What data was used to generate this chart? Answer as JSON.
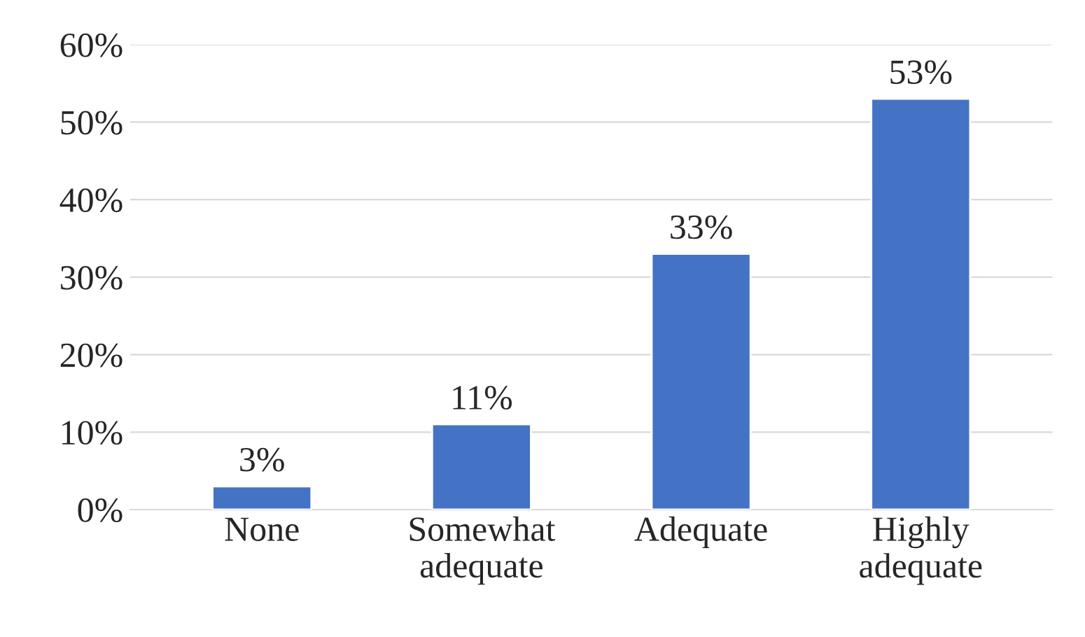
{
  "chart_data": {
    "type": "bar",
    "categories": [
      "None",
      "Somewhat\nadequate",
      "Adequate",
      "Highly\nadequate"
    ],
    "values": [
      3,
      11,
      33,
      53
    ],
    "color": "#4472c4",
    "value_labels": [
      "3%",
      "11%",
      "33%",
      "53%"
    ],
    "ylim": [
      0,
      60
    ],
    "yticks": [
      {
        "value": 0,
        "label": "0%"
      },
      {
        "value": 10,
        "label": "10%"
      },
      {
        "value": 20,
        "label": "20%"
      },
      {
        "value": 30,
        "label": "30%"
      },
      {
        "value": 40,
        "label": "40%"
      },
      {
        "value": 50,
        "label": "50%"
      },
      {
        "value": 60,
        "label": "60%"
      }
    ],
    "grid": "y"
  }
}
